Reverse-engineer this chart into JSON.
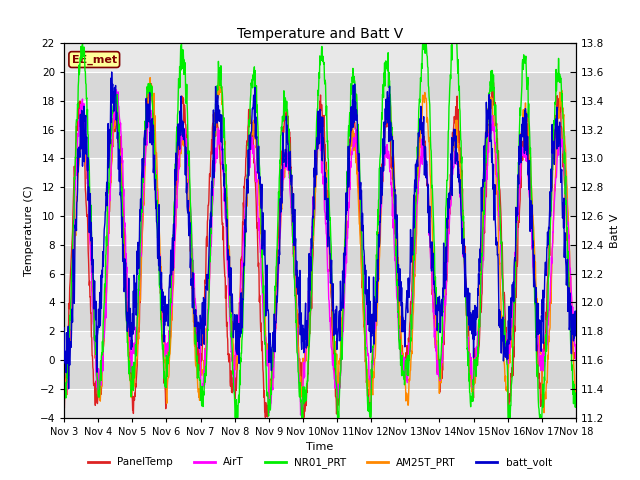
{
  "title": "Temperature and Batt V",
  "xlabel": "Time",
  "ylabel_left": "Temperature (C)",
  "ylabel_right": "Batt V",
  "ylim_left": [
    -4,
    22
  ],
  "ylim_right": [
    11.2,
    13.8
  ],
  "yticks_left": [
    -4,
    -2,
    0,
    2,
    4,
    6,
    8,
    10,
    12,
    14,
    16,
    18,
    20,
    22
  ],
  "yticks_right": [
    11.2,
    11.4,
    11.6,
    11.8,
    12.0,
    12.2,
    12.4,
    12.6,
    12.8,
    13.0,
    13.2,
    13.4,
    13.6,
    13.8
  ],
  "x_tick_labels": [
    "Nov 3",
    "Nov 4",
    "Nov 5",
    "Nov 6",
    "Nov 7",
    "Nov 8",
    "Nov 9",
    "Nov 10",
    "Nov 11",
    "Nov 12",
    "Nov 13",
    "Nov 14",
    "Nov 15",
    "Nov 16",
    "Nov 17",
    "Nov 18"
  ],
  "station_label": "EE_met",
  "station_label_color": "#800000",
  "legend_items": [
    {
      "label": "PanelTemp",
      "color": "#dd2222"
    },
    {
      "label": "AirT",
      "color": "#ff00ff"
    },
    {
      "label": "NR01_PRT",
      "color": "#00ee00"
    },
    {
      "label": "AM25T_PRT",
      "color": "#ff8800"
    },
    {
      "label": "batt_volt",
      "color": "#0000cc"
    }
  ],
  "background_color": "#ffffff",
  "plot_bg_color": "#d8d8d8",
  "band_color": "#e8e8e8",
  "grid_color": "#ffffff",
  "num_days": 15,
  "points_per_day": 96,
  "figwidth": 6.4,
  "figheight": 4.8,
  "dpi": 100
}
